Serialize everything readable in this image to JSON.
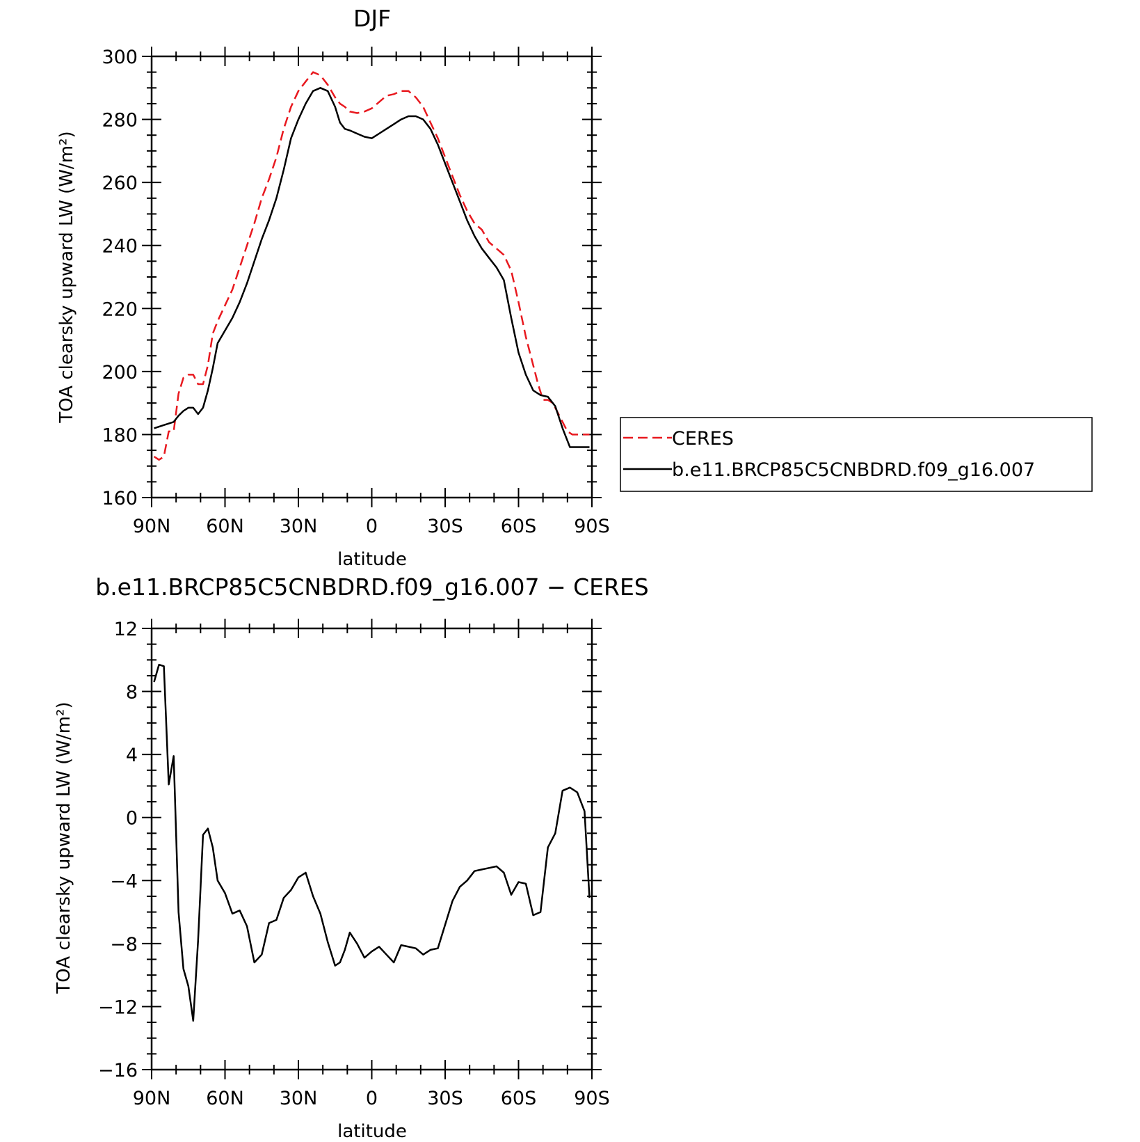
{
  "chart_data": [
    {
      "type": "line",
      "title": "DJF",
      "xlabel": "latitude",
      "ylabel": "TOA clearsky upward LW (W/m²)",
      "xlim": [
        90,
        -90
      ],
      "ylim": [
        160,
        300
      ],
      "yticks": [
        160,
        180,
        200,
        220,
        240,
        260,
        280,
        300
      ],
      "xticks": [
        90,
        60,
        30,
        0,
        -30,
        -60,
        -90
      ],
      "xticklabels": [
        "90N",
        "60N",
        "30N",
        "0",
        "30S",
        "60S",
        "90S"
      ],
      "legend": "right",
      "series": [
        {
          "name": "CERES",
          "color": "#e8191f",
          "dash": true,
          "x": [
            89,
            87,
            85,
            83,
            81,
            79,
            77,
            75,
            73,
            71,
            69,
            67,
            65,
            63,
            60,
            57,
            54,
            51,
            48,
            45,
            42,
            39,
            36,
            33,
            30,
            27,
            24,
            21,
            18,
            15,
            13,
            11,
            9,
            6,
            3,
            0,
            -3,
            -6,
            -9,
            -12,
            -15,
            -18,
            -21,
            -24,
            -27,
            -30,
            -33,
            -36,
            -39,
            -42,
            -45,
            -48,
            -51,
            -54,
            -57,
            -60,
            -63,
            -66,
            -68,
            -70,
            -72,
            -74,
            -76,
            -78,
            -80,
            -82,
            -84,
            -86,
            -88,
            -89
          ],
          "y": [
            173,
            172,
            173,
            181,
            181,
            193,
            198,
            199,
            199,
            196,
            196,
            202,
            212,
            216,
            221,
            226,
            233,
            240,
            247,
            255,
            261,
            268,
            277,
            284,
            289,
            292,
            295,
            294,
            291,
            287,
            285,
            284,
            282.5,
            282,
            282.5,
            283.5,
            285.5,
            287.5,
            288,
            289,
            289,
            287,
            284,
            279,
            274,
            268,
            262,
            256,
            251,
            247,
            245,
            241,
            239,
            237,
            232,
            222,
            211,
            202,
            196,
            191,
            191,
            190,
            187,
            184,
            181,
            180,
            180,
            180,
            180,
            180
          ]
        },
        {
          "name": "b.e11.BRCP85C5CNBDRD.f09_g16.007",
          "color": "#000000",
          "dash": false,
          "x": [
            89,
            85,
            81,
            79,
            77,
            75,
            73,
            71,
            69,
            67,
            65,
            63,
            60,
            57,
            54,
            51,
            48,
            45,
            42,
            39,
            36,
            33,
            30,
            27,
            24,
            21,
            18,
            15,
            13,
            11,
            9,
            6,
            3,
            0,
            -3,
            -6,
            -9,
            -12,
            -15,
            -18,
            -21,
            -24,
            -27,
            -30,
            -33,
            -36,
            -39,
            -42,
            -45,
            -48,
            -51,
            -54,
            -57,
            -60,
            -63,
            -66,
            -69,
            -72,
            -75,
            -78,
            -81,
            -84,
            -87,
            -89
          ],
          "y": [
            182,
            183,
            184,
            186,
            187.5,
            188.5,
            188.5,
            186.5,
            188.5,
            194,
            201,
            209,
            213,
            217,
            222,
            228,
            235,
            242,
            248,
            255,
            264,
            274,
            280,
            285,
            289,
            290,
            289,
            284,
            279,
            277,
            276.5,
            275.5,
            274.5,
            274,
            275.5,
            277,
            278.5,
            280,
            281,
            281,
            280,
            277,
            272,
            266,
            260,
            254,
            248,
            243,
            239,
            236,
            233,
            229,
            217,
            206,
            199,
            194,
            192.5,
            192,
            189,
            182,
            176,
            176,
            176,
            176
          ]
        }
      ]
    },
    {
      "type": "line",
      "title": "b.e11.BRCP85C5CNBDRD.f09_g16.007 − CERES",
      "xlabel": "latitude",
      "ylabel": "TOA clearsky upward LW (W/m²)",
      "xlim": [
        90,
        -90
      ],
      "ylim": [
        -16,
        12
      ],
      "yticks": [
        -16,
        -12,
        -8,
        -4,
        0,
        4,
        8,
        12
      ],
      "yticklabels": [
        "−16",
        "−12",
        "−8",
        "−4",
        "0",
        "4",
        "8",
        "12"
      ],
      "xticks": [
        90,
        60,
        30,
        0,
        -30,
        -60,
        -90
      ],
      "xticklabels": [
        "90N",
        "60N",
        "30N",
        "0",
        "30S",
        "60S",
        "90S"
      ],
      "series": [
        {
          "color": "#000000",
          "dash": false,
          "x": [
            89,
            87,
            85,
            83,
            81,
            79,
            77,
            75,
            73,
            71,
            69,
            67,
            65,
            63,
            60,
            57,
            54,
            51,
            48,
            45,
            42,
            39,
            36,
            33,
            30,
            27,
            24,
            21,
            18,
            15,
            13,
            11,
            9,
            6,
            3,
            0,
            -3,
            -6,
            -9,
            -12,
            -15,
            -18,
            -21,
            -24,
            -27,
            -30,
            -33,
            -36,
            -39,
            -42,
            -45,
            -48,
            -51,
            -54,
            -57,
            -60,
            -63,
            -66,
            -69,
            -72,
            -75,
            -78,
            -81,
            -84,
            -87,
            -89
          ],
          "y": [
            8.6,
            9.7,
            9.6,
            2.1,
            3.9,
            -6.0,
            -9.6,
            -10.7,
            -12.9,
            -7.8,
            -1.1,
            -0.7,
            -1.9,
            -4.0,
            -4.8,
            -6.1,
            -5.9,
            -6.9,
            -9.2,
            -8.7,
            -6.7,
            -6.5,
            -5.1,
            -4.6,
            -3.8,
            -3.5,
            -5.0,
            -6.1,
            -7.9,
            -9.4,
            -9.2,
            -8.4,
            -7.3,
            -8.0,
            -8.9,
            -8.5,
            -8.2,
            -8.7,
            -9.2,
            -8.1,
            -8.2,
            -8.3,
            -8.7,
            -8.4,
            -8.3,
            -6.8,
            -5.3,
            -4.4,
            -4.0,
            -3.4,
            -3.3,
            -3.2,
            -3.1,
            -3.5,
            -4.9,
            -4.1,
            -4.2,
            -6.2,
            -6.0,
            -1.9,
            -1.0,
            1.7,
            1.9,
            1.6,
            0.4,
            -5.1
          ]
        }
      ]
    }
  ]
}
